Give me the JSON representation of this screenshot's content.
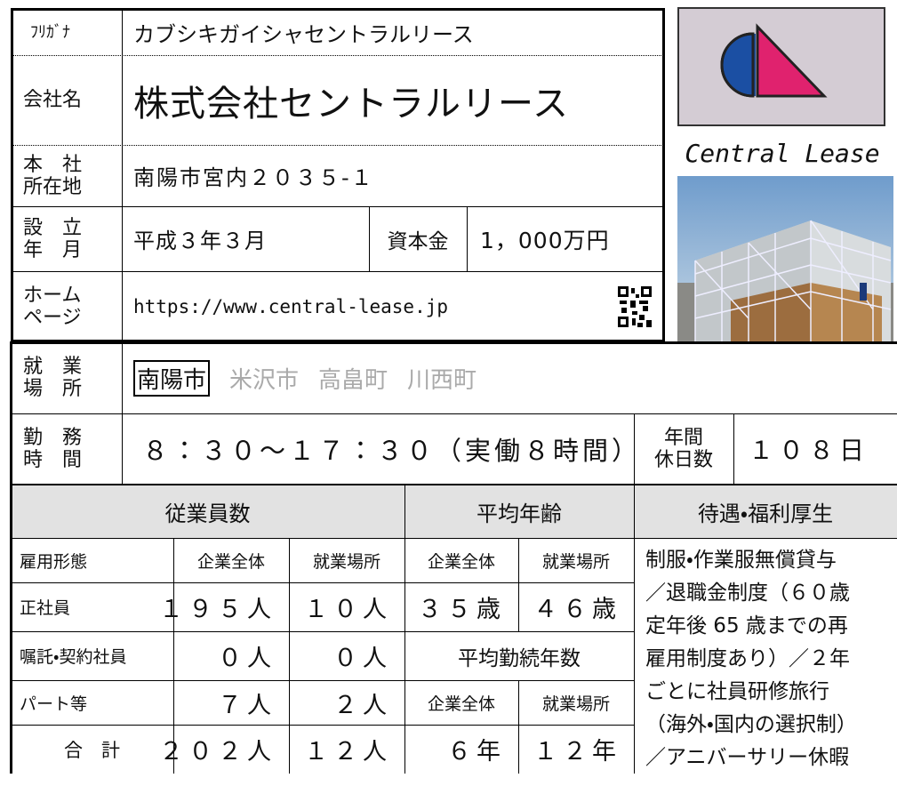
{
  "furigana": {
    "label": "ﾌﾘｶﾞﾅ",
    "value": "カブシキガイシャセントラルリース"
  },
  "company_name": {
    "label": "会社名",
    "value": "株式会社セントラルリース"
  },
  "address": {
    "label": [
      "本　社",
      "所在地"
    ],
    "value": "南陽市宮内２０３５-１"
  },
  "founded": {
    "label": [
      "設　立",
      "年　月"
    ],
    "value": "平成３年３月"
  },
  "capital": {
    "label": "資本金",
    "value": "1，000万円"
  },
  "homepage": {
    "label": [
      "ホーム",
      "ページ"
    ],
    "value": "https://www.central-lease.jp"
  },
  "logo_text": "Central Lease",
  "work_location": {
    "label": [
      "就　業",
      "場　所"
    ],
    "options": [
      "南陽市",
      "米沢市",
      "高畠町",
      "川西町"
    ],
    "selected": 0
  },
  "work_hours": {
    "label": [
      "勤　務",
      "時　間"
    ],
    "value": "８：３０～１７：３０（実働８時間）"
  },
  "annual_holidays": {
    "label": [
      "年間",
      "休日数"
    ],
    "value": "１０８日"
  },
  "employees": {
    "header": "従業員数",
    "columns": [
      "雇用形態",
      "企業全体",
      "就業場所"
    ],
    "rows": [
      [
        "正社員",
        "１９５人",
        "１０人"
      ],
      [
        "嘱託・契約社員",
        "０人",
        "０人"
      ],
      [
        "パート等",
        "７人",
        "２人"
      ],
      [
        "合　計",
        "２０２人",
        "１２人"
      ]
    ]
  },
  "average_age": {
    "header": "平均年齢",
    "columns": [
      "企業全体",
      "就業場所"
    ],
    "values": [
      "３５歳",
      "４６歳"
    ]
  },
  "average_tenure": {
    "header": "平均勤続年数",
    "columns": [
      "企業全体",
      "就業場所"
    ],
    "values": [
      "６年",
      "１２年"
    ]
  },
  "benefits": {
    "header": "待遇・福利厚生",
    "lines": [
      "制服・作業服無償貸与",
      "／退職金制度（６０歳",
      "定年後 65 歳までの再",
      "雇用制度あり）／２年",
      "ごとに社員研修旅行",
      "（海外・国内の選択制）",
      "／アニバーサリー休暇"
    ]
  }
}
